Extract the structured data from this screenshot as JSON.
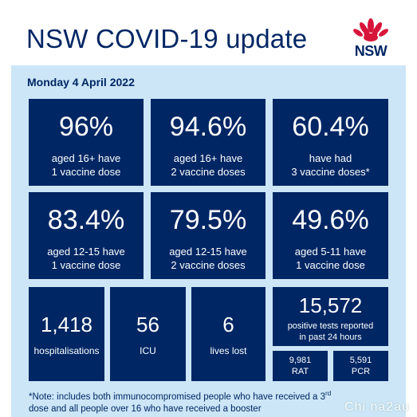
{
  "header": {
    "title": "NSW COVID-19 update",
    "logo_text": "NSW"
  },
  "date": "Monday 4 April 2022",
  "tiles_top": [
    {
      "value": "96%",
      "line1": "aged 16+ have",
      "line2": "1 vaccine dose"
    },
    {
      "value": "94.6%",
      "line1": "aged 16+ have",
      "line2": "2 vaccine doses"
    },
    {
      "value": "60.4%",
      "line1": "have had",
      "line2": "3 vaccine doses*"
    }
  ],
  "tiles_mid": [
    {
      "value": "83.4%",
      "line1": "aged 12-15 have",
      "line2": "1 vaccine dose"
    },
    {
      "value": "79.5%",
      "line1": "aged 12-15 have",
      "line2": "2 vaccine doses"
    },
    {
      "value": "49.6%",
      "line1": "aged 5-11 have",
      "line2": "1 vaccine dose"
    }
  ],
  "tiles_bottom": [
    {
      "value": "1,418",
      "label": "hospitalisations"
    },
    {
      "value": "56",
      "label": "ICU"
    },
    {
      "value": "6",
      "label": "lives lost"
    }
  ],
  "tests": {
    "value": "15,572",
    "line1": "positive tests reported",
    "line2": "in past 24 hours",
    "rat_value": "9,981",
    "rat_label": "RAT",
    "pcr_value": "5,591",
    "pcr_label": "PCR"
  },
  "note": {
    "line1a": "*Note: includes both immunocompromised  people who have received a 3",
    "line1_sup": "rd",
    "line2": "dose and all people over 16 who have received a booster"
  },
  "watermark": "Chi na2au",
  "colors": {
    "navy": "#002664",
    "light_blue": "#cce6f7",
    "waratah_red": "#d7153a"
  }
}
